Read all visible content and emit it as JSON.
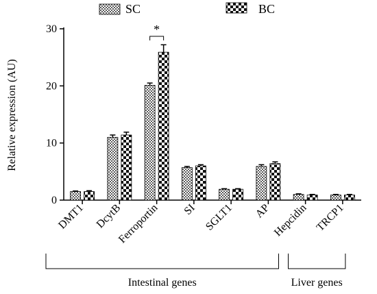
{
  "chart_data": {
    "type": "bar",
    "ylabel": "Relative expression (AU)",
    "ylim": [
      0,
      30
    ],
    "yticks": [
      0,
      10,
      20,
      30
    ],
    "categories": [
      "DMT1",
      "DcytB",
      "Ferroportin",
      "SI",
      "SGLT1",
      "AP",
      "Hepcidin",
      "TRCP1"
    ],
    "series": [
      {
        "name": "SC",
        "pattern": "fine-checker",
        "values": [
          1.5,
          11.0,
          20.1,
          5.7,
          1.9,
          5.9,
          1.0,
          0.9
        ],
        "errors": [
          0.1,
          0.4,
          0.4,
          0.2,
          0.1,
          0.3,
          0.1,
          0.1
        ]
      },
      {
        "name": "BC",
        "pattern": "coarse-checker",
        "values": [
          1.5,
          11.4,
          25.9,
          6.0,
          1.9,
          6.4,
          0.9,
          0.9
        ],
        "errors": [
          0.15,
          0.5,
          1.3,
          0.2,
          0.1,
          0.3,
          0.1,
          0.1
        ]
      }
    ],
    "significance": [
      {
        "category": "Ferroportin",
        "label": "*"
      }
    ],
    "groups": [
      {
        "label": "Intestinal genes",
        "categories": [
          "DMT1",
          "DcytB",
          "Ferroportin",
          "SI",
          "SGLT1",
          "AP"
        ]
      },
      {
        "label": "Liver genes",
        "categories": [
          "Hepcidin",
          "TRCP1"
        ]
      }
    ],
    "legend": {
      "placement": "top"
    },
    "grid": false
  }
}
